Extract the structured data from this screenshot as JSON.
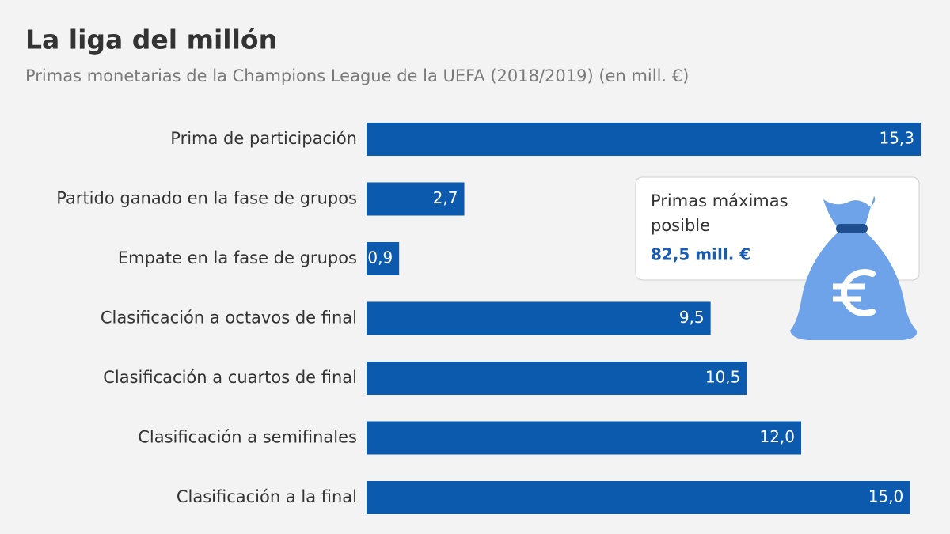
{
  "chart_data": {
    "type": "bar",
    "orientation": "horizontal",
    "title": "La liga del millón",
    "subtitle": "Primas monetarias de la Champions League de la UEFA (2018/2019) (en mill. €)",
    "categories": [
      "Prima de participación",
      "Partido ganado en la fase de grupos",
      "Empate en la fase de grupos",
      "Clasificación a octavos de final",
      "Clasificación a cuartos de final",
      "Clasificación a semifinales",
      "Clasificación a la final"
    ],
    "values": [
      15.3,
      2.7,
      0.9,
      9.5,
      10.5,
      12.0,
      15.0
    ],
    "value_labels": [
      "15,3",
      "2,7",
      "0,9",
      "9,5",
      "10,5",
      "12,0",
      "15,0"
    ],
    "color": "#0b5aad",
    "annotation": {
      "lines": [
        "Primas máximas",
        "posible"
      ],
      "highlight": "82,5 mill. €"
    }
  }
}
